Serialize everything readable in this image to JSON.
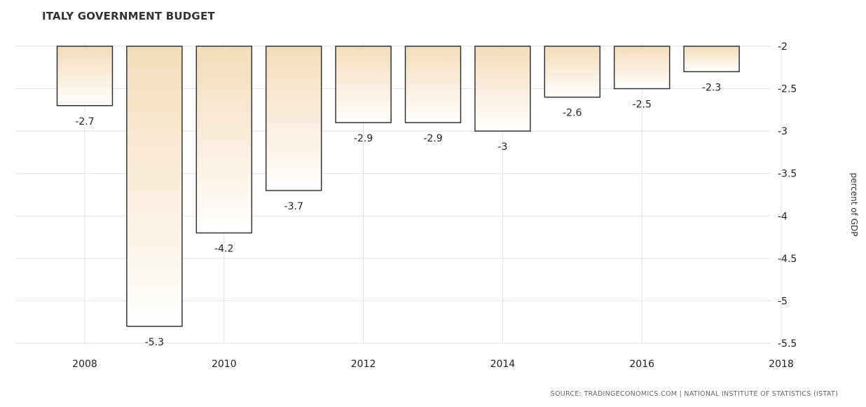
{
  "chart_data": {
    "type": "bar",
    "title": "ITALY GOVERNMENT BUDGET",
    "ylabel": "percent of GDP",
    "xlabel": "",
    "categories": [
      "2008",
      "2009",
      "2010",
      "2011",
      "2012",
      "2013",
      "2014",
      "2015",
      "2016",
      "2017"
    ],
    "values": [
      -2.7,
      -5.3,
      -4.2,
      -3.7,
      -2.9,
      -2.9,
      -3,
      -2.6,
      -2.5,
      -2.3
    ],
    "value_labels": [
      "-2.7",
      "-5.3",
      "-4.2",
      "-3.7",
      "-2.9",
      "-2.9",
      "-3",
      "-2.6",
      "-2.5",
      "-2.3"
    ],
    "ylim": [
      -5.5,
      -2
    ],
    "y_ticks": [
      "-2",
      "-2.5",
      "-3",
      "-3.5",
      "-4",
      "-4.5",
      "-5",
      "-5.5"
    ],
    "y_tick_values": [
      -2,
      -2.5,
      -3,
      -3.5,
      -4,
      -4.5,
      -5,
      -5.5
    ],
    "x_ticks": [
      "2008",
      "2010",
      "2012",
      "2014",
      "2016",
      "2018"
    ],
    "x_tick_values": [
      2008,
      2010,
      2012,
      2014,
      2016,
      2018
    ],
    "y_axis_side": "right",
    "grid": true,
    "bar_fill_top": "#f3dcb8",
    "bar_fill_bottom": "#ffffff",
    "bar_stroke": "#333333"
  },
  "source": "SOURCE: TRADINGECONOMICS.COM | NATIONAL INSTITUTE OF STATISTICS (ISTAT)"
}
